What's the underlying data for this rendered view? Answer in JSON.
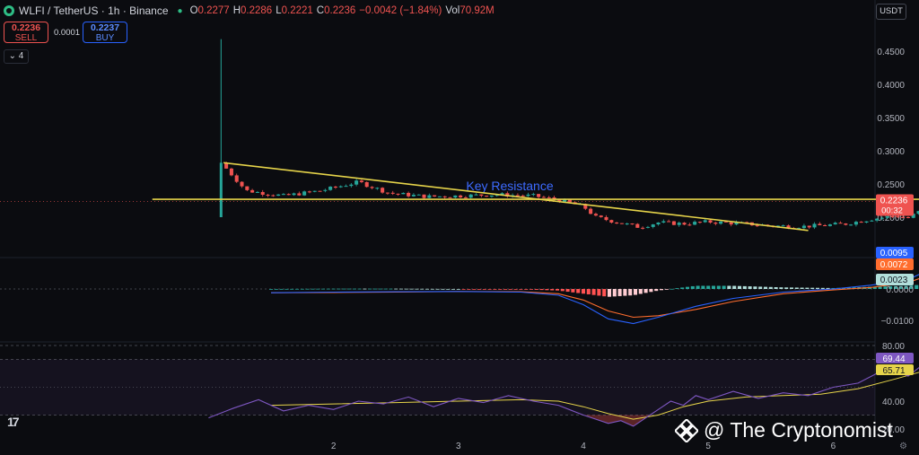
{
  "header": {
    "ticker": "WLFI / TetherUS · 1h · Binance",
    "ohlc": [
      {
        "k": "O",
        "v": "0.2277"
      },
      {
        "k": "H",
        "v": "0.2286"
      },
      {
        "k": "L",
        "v": "0.2221"
      },
      {
        "k": "C",
        "v": "0.2236"
      },
      {
        "k": "",
        "v": "−0.0042 (−1.84%)"
      },
      {
        "k": "Vol",
        "v": "70.92M"
      }
    ],
    "sell_price": "0.2236",
    "sell_label": "SELL",
    "buy_price": "0.2237",
    "buy_label": "BUY",
    "spread": "0.0001",
    "collapse": "4"
  },
  "currency": "USDT",
  "watermark": "@ The Cryptonomist",
  "colors": {
    "up": "#26a69a",
    "down": "#ef5350",
    "resistance": "#e6d44a",
    "macd": "#2962ff",
    "signal": "#ff6d2e",
    "rsi": "#7e57c2",
    "rsi_ma": "#e6d44a"
  },
  "chart_data": {
    "type": "candlestick",
    "symbol": "WLFI/USDT",
    "interval": "1h",
    "exchange": "Binance",
    "price_axis": {
      "ticks": [
        "0.4500",
        "0.4000",
        "0.3500",
        "0.3000",
        "0.2500",
        "0.2000"
      ],
      "range": [
        0.16,
        0.49
      ]
    },
    "x_axis": {
      "ticks": [
        "2",
        "3",
        "4",
        "5",
        "6",
        "7"
      ]
    },
    "last_price": "0.2236",
    "countdown": "00:32",
    "spike": {
      "x": 1.1,
      "open": 0.2,
      "high": 0.468,
      "low": 0.2,
      "close": 0.282
    },
    "key_points": [
      [
        1.1,
        0.282
      ],
      [
        1.3,
        0.24
      ],
      [
        1.6,
        0.232
      ],
      [
        1.9,
        0.24
      ],
      [
        2.2,
        0.253
      ],
      [
        2.45,
        0.236
      ],
      [
        2.75,
        0.231
      ],
      [
        3.0,
        0.232
      ],
      [
        3.3,
        0.234
      ],
      [
        3.6,
        0.232
      ],
      [
        3.8,
        0.226
      ],
      [
        4.0,
        0.216
      ],
      [
        4.1,
        0.2
      ],
      [
        4.3,
        0.191
      ],
      [
        4.45,
        0.185
      ],
      [
        4.6,
        0.192
      ],
      [
        4.8,
        0.19
      ],
      [
        5.0,
        0.193
      ],
      [
        5.3,
        0.19
      ],
      [
        5.5,
        0.187
      ],
      [
        5.75,
        0.186
      ],
      [
        5.95,
        0.188
      ],
      [
        6.1,
        0.19
      ],
      [
        6.3,
        0.197
      ],
      [
        6.5,
        0.202
      ],
      [
        6.6,
        0.199
      ],
      [
        6.75,
        0.215
      ],
      [
        6.9,
        0.225
      ],
      [
        6.95,
        0.2236
      ]
    ],
    "annotations": [
      {
        "type": "hline",
        "label": "Key Resistance",
        "price": 0.227,
        "x_from": 0.55,
        "x_to": 7.35
      },
      {
        "type": "trendline",
        "from": [
          1.12,
          0.282
        ],
        "to": [
          5.8,
          0.18
        ]
      }
    ],
    "macd": {
      "ticks": [
        "0.0000",
        "−0.0100"
      ],
      "labels": {
        "macd": "0.0095",
        "signal": "0.0072",
        "hist": "0.0023"
      },
      "macd_points": [
        [
          1.5,
          -0.0012
        ],
        [
          2.0,
          -0.001
        ],
        [
          2.5,
          -0.0009
        ],
        [
          3.0,
          -0.0008
        ],
        [
          3.5,
          -0.001
        ],
        [
          3.8,
          -0.002
        ],
        [
          4.0,
          -0.005
        ],
        [
          4.2,
          -0.0095
        ],
        [
          4.4,
          -0.011
        ],
        [
          4.6,
          -0.009
        ],
        [
          4.9,
          -0.0055
        ],
        [
          5.2,
          -0.003
        ],
        [
          5.6,
          -0.001
        ],
        [
          6.0,
          0.0
        ],
        [
          6.3,
          0.0012
        ],
        [
          6.6,
          0.003
        ],
        [
          6.95,
          0.0095
        ]
      ],
      "signal_points": [
        [
          1.5,
          -0.0012
        ],
        [
          2.0,
          -0.0011
        ],
        [
          2.5,
          -0.001
        ],
        [
          3.0,
          -0.0008
        ],
        [
          3.5,
          -0.0009
        ],
        [
          3.8,
          -0.0015
        ],
        [
          4.0,
          -0.0035
        ],
        [
          4.2,
          -0.007
        ],
        [
          4.4,
          -0.009
        ],
        [
          4.6,
          -0.0085
        ],
        [
          4.9,
          -0.0065
        ],
        [
          5.2,
          -0.004
        ],
        [
          5.6,
          -0.0015
        ],
        [
          6.0,
          -0.0003
        ],
        [
          6.3,
          0.0005
        ],
        [
          6.6,
          0.002
        ],
        [
          6.95,
          0.0072
        ]
      ]
    },
    "rsi": {
      "ticks": [
        "80.00",
        "40.00",
        "20.00"
      ],
      "bands": [
        70,
        30
      ],
      "labels": {
        "rsi": "69.44",
        "ma": "65.71"
      },
      "rsi_points": [
        [
          1.0,
          28
        ],
        [
          1.2,
          35
        ],
        [
          1.4,
          41
        ],
        [
          1.6,
          33
        ],
        [
          1.8,
          37
        ],
        [
          2.0,
          34
        ],
        [
          2.2,
          40
        ],
        [
          2.4,
          38
        ],
        [
          2.6,
          43
        ],
        [
          2.8,
          36
        ],
        [
          3.0,
          42
        ],
        [
          3.2,
          39
        ],
        [
          3.4,
          44
        ],
        [
          3.6,
          40
        ],
        [
          3.8,
          37
        ],
        [
          4.0,
          30
        ],
        [
          4.1,
          27
        ],
        [
          4.2,
          24
        ],
        [
          4.3,
          26
        ],
        [
          4.4,
          22
        ],
        [
          4.5,
          28
        ],
        [
          4.6,
          34
        ],
        [
          4.7,
          40
        ],
        [
          4.8,
          37
        ],
        [
          4.9,
          44
        ],
        [
          5.0,
          41
        ],
        [
          5.2,
          47
        ],
        [
          5.4,
          42
        ],
        [
          5.6,
          46
        ],
        [
          5.8,
          44
        ],
        [
          6.0,
          50
        ],
        [
          6.2,
          53
        ],
        [
          6.35,
          60
        ],
        [
          6.5,
          62
        ],
        [
          6.6,
          58
        ],
        [
          6.7,
          65
        ],
        [
          6.8,
          70
        ],
        [
          6.9,
          74
        ],
        [
          6.95,
          69.44
        ]
      ],
      "ma_points": [
        [
          1.5,
          37
        ],
        [
          2.0,
          38
        ],
        [
          2.5,
          39
        ],
        [
          3.0,
          40
        ],
        [
          3.5,
          41
        ],
        [
          3.8,
          40
        ],
        [
          4.0,
          36
        ],
        [
          4.2,
          31
        ],
        [
          4.4,
          27
        ],
        [
          4.6,
          30
        ],
        [
          4.8,
          36
        ],
        [
          5.0,
          40
        ],
        [
          5.3,
          43
        ],
        [
          5.6,
          44
        ],
        [
          5.9,
          45
        ],
        [
          6.2,
          49
        ],
        [
          6.5,
          56
        ],
        [
          6.7,
          61
        ],
        [
          6.95,
          65.71
        ]
      ]
    }
  }
}
